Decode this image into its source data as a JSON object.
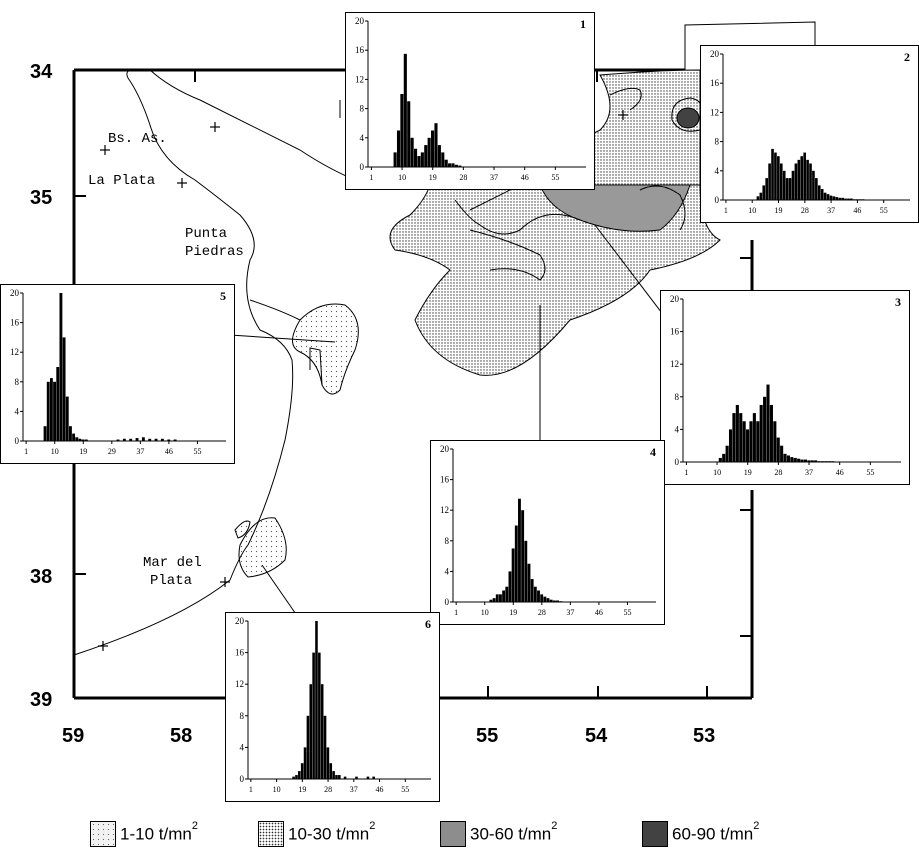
{
  "map": {
    "lat_labels": [
      "34",
      "35",
      "38",
      "39"
    ],
    "lon_labels": [
      "59",
      "58",
      "55",
      "54",
      "53"
    ],
    "places": [
      "Bs. As.",
      "La Plata",
      "Punta",
      "Piedras",
      "Mar del",
      "Plata"
    ]
  },
  "legend": [
    {
      "label": "1-10 t/mn",
      "sup": "2",
      "color": "#f2f2f2"
    },
    {
      "label": "10-30 t/mn",
      "sup": "2",
      "color": "#dcdcdc"
    },
    {
      "label": "30-60  t/mn",
      "sup": "2",
      "color": "#a9a9a9"
    },
    {
      "label": "60-90 t/mn",
      "sup": "2",
      "color": "#555555"
    }
  ],
  "chart_data": [
    {
      "type": "bar",
      "id": "1",
      "ylim": [
        0,
        20
      ],
      "yticks": [
        "0",
        "4",
        "8",
        "12",
        "16",
        "20"
      ],
      "xticks": [
        "1",
        "10",
        "19",
        "28",
        "37",
        "46",
        "55"
      ],
      "x": [
        8,
        9,
        10,
        11,
        12,
        13,
        14,
        15,
        16,
        17,
        18,
        19,
        20,
        21,
        22,
        23,
        24,
        25,
        26,
        27
      ],
      "values": [
        2,
        5,
        10,
        15.5,
        9,
        4,
        2.5,
        1.5,
        2,
        3,
        4,
        5,
        6,
        3,
        2,
        1,
        0.5,
        0.5,
        0.3,
        0.2
      ]
    },
    {
      "type": "bar",
      "id": "2",
      "ylim": [
        0,
        20
      ],
      "yticks": [
        "0",
        "4",
        "8",
        "12",
        "16",
        "20"
      ],
      "xticks": [
        "1",
        "10",
        "19",
        "28",
        "37",
        "46",
        "55"
      ],
      "x": [
        12,
        13,
        14,
        15,
        16,
        17,
        18,
        19,
        20,
        21,
        22,
        23,
        24,
        25,
        26,
        27,
        28,
        29,
        30,
        31,
        32,
        33,
        34,
        35,
        36,
        37,
        38,
        39,
        40,
        41,
        42,
        43,
        44,
        45,
        46,
        47,
        48
      ],
      "values": [
        0.5,
        1,
        2,
        3,
        5,
        7,
        6.5,
        6,
        5,
        4,
        3,
        3,
        4,
        5,
        5.5,
        6,
        6.5,
        5.5,
        5,
        4,
        3,
        2,
        1.5,
        1,
        0.8,
        0.6,
        0.5,
        0.4,
        0.3,
        0.3,
        0.2,
        0.2,
        0.2,
        0.1,
        0.1,
        0.1,
        0.1
      ]
    },
    {
      "type": "bar",
      "id": "3",
      "ylim": [
        0,
        20
      ],
      "yticks": [
        "0",
        "4",
        "8",
        "12",
        "16",
        "20"
      ],
      "xticks": [
        "1",
        "10",
        "19",
        "28",
        "37",
        "46",
        "55"
      ],
      "x": [
        11,
        12,
        13,
        14,
        15,
        16,
        17,
        18,
        19,
        20,
        21,
        22,
        23,
        24,
        25,
        26,
        27,
        28,
        29,
        30,
        31,
        32,
        33,
        34,
        35,
        36,
        37,
        38,
        39,
        40,
        41,
        42,
        43,
        44
      ],
      "values": [
        0.5,
        1,
        2,
        4,
        6,
        7,
        6,
        5,
        4,
        5,
        6,
        5,
        7,
        8,
        9.5,
        7,
        5,
        3,
        2,
        1,
        0.8,
        0.6,
        0.5,
        0.4,
        0.3,
        0.3,
        0.2,
        0.2,
        0.2,
        0.1,
        0.1,
        0.1,
        0.1,
        0.1
      ]
    },
    {
      "type": "bar",
      "id": "4",
      "ylim": [
        0,
        20
      ],
      "yticks": [
        "0",
        "4",
        "8",
        "12",
        "16",
        "20"
      ],
      "xticks": [
        "1",
        "10",
        "19",
        "28",
        "37",
        "46",
        "55"
      ],
      "x": [
        12,
        13,
        14,
        15,
        16,
        17,
        18,
        19,
        20,
        21,
        22,
        23,
        24,
        25,
        26,
        27,
        28,
        29,
        30,
        31,
        32,
        33,
        34
      ],
      "values": [
        0.3,
        0.5,
        1,
        1,
        1.5,
        2,
        4,
        7,
        10,
        13.5,
        12,
        8,
        5,
        3,
        2,
        1.5,
        1,
        0.7,
        0.5,
        0.3,
        0.2,
        0.2,
        0.1
      ]
    },
    {
      "type": "bar",
      "id": "5",
      "ylim": [
        0,
        20
      ],
      "yticks": [
        "0",
        "4",
        "8",
        "12",
        "16",
        "20"
      ],
      "xticks": [
        "1",
        "10",
        "19",
        "29",
        "37",
        "46",
        "55"
      ],
      "x": [
        7,
        8,
        9,
        10,
        11,
        12,
        13,
        14,
        15,
        16,
        17,
        18,
        19,
        20,
        30,
        32,
        34,
        36,
        38,
        40,
        42,
        44,
        46,
        48
      ],
      "values": [
        2,
        8,
        8.5,
        8,
        10,
        20,
        14,
        6,
        2,
        1,
        0.5,
        0.3,
        0.2,
        0.2,
        0.2,
        0.3,
        0.3,
        0.4,
        0.5,
        0.3,
        0.3,
        0.3,
        0.2,
        0.2
      ]
    },
    {
      "type": "bar",
      "id": "6",
      "ylim": [
        0,
        20
      ],
      "yticks": [
        "0",
        "4",
        "8",
        "12",
        "16",
        "20"
      ],
      "xticks": [
        "1",
        "10",
        "19",
        "28",
        "37",
        "46",
        "55"
      ],
      "x": [
        16,
        17,
        18,
        19,
        20,
        21,
        22,
        23,
        24,
        25,
        26,
        27,
        28,
        29,
        30,
        31,
        32,
        34,
        38,
        42,
        44
      ],
      "values": [
        0.3,
        0.5,
        1,
        2,
        4,
        8,
        12,
        16,
        20,
        16,
        12,
        8,
        4,
        2,
        1,
        0.5,
        0.5,
        0.3,
        0.3,
        0.3,
        0.3
      ]
    }
  ]
}
